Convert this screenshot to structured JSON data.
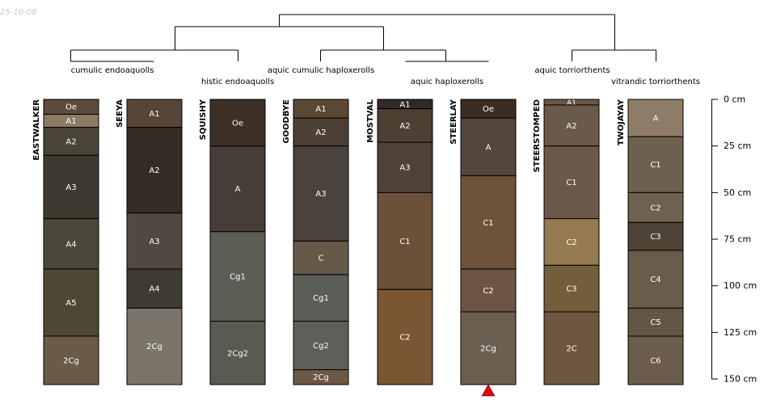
{
  "date_stamp": "25-10-08",
  "depth_axis": {
    "unit": "cm",
    "max": 150,
    "ticks": [
      {
        "value": 0,
        "label": "0 cm"
      },
      {
        "value": 25,
        "label": "25 cm"
      },
      {
        "value": 50,
        "label": "50 cm"
      },
      {
        "value": 75,
        "label": "75 cm"
      },
      {
        "value": 100,
        "label": "100 cm"
      },
      {
        "value": 125,
        "label": "125 cm"
      },
      {
        "value": 150,
        "label": "150 cm"
      }
    ]
  },
  "taxa": [
    "cumulic endoaquolls",
    "histic endoaquolls",
    "aquic cumulic haploxerolls",
    "aquic haploxerolls",
    "aquic torriorthents",
    "vitrandic torriorthents"
  ],
  "marker": {
    "profile_index": 5,
    "color": "#e8000b"
  },
  "profiles": [
    {
      "name": "EASTWALKER",
      "horizons": [
        {
          "name": "Oe",
          "top": 0,
          "bottom": 8,
          "color": "#5c4a3a"
        },
        {
          "name": "A1",
          "top": 8,
          "bottom": 15,
          "color": "#8c7b63"
        },
        {
          "name": "A2",
          "top": 15,
          "bottom": 30,
          "color": "#4a4538"
        },
        {
          "name": "A3",
          "top": 30,
          "bottom": 64,
          "color": "#3f3a30"
        },
        {
          "name": "A4",
          "top": 64,
          "bottom": 91,
          "color": "#4b4739"
        },
        {
          "name": "A5",
          "top": 91,
          "bottom": 127,
          "color": "#4f4733"
        },
        {
          "name": "2Cg",
          "top": 127,
          "bottom": 153,
          "color": "#6a5a48"
        }
      ]
    },
    {
      "name": "SEEYA",
      "horizons": [
        {
          "name": "A1",
          "top": 0,
          "bottom": 15,
          "color": "#574638"
        },
        {
          "name": "A2",
          "top": 15,
          "bottom": 61,
          "color": "#352a25"
        },
        {
          "name": "A3",
          "top": 61,
          "bottom": 91,
          "color": "#524840"
        },
        {
          "name": "A4",
          "top": 91,
          "bottom": 112,
          "color": "#3f3a34"
        },
        {
          "name": "2Cg",
          "top": 112,
          "bottom": 153,
          "color": "#7a7469"
        }
      ]
    },
    {
      "name": "SQUISHY",
      "horizons": [
        {
          "name": "Oe",
          "top": 0,
          "bottom": 25,
          "color": "#3c2f25"
        },
        {
          "name": "A",
          "top": 25,
          "bottom": 71,
          "color": "#463d38"
        },
        {
          "name": "Cg1",
          "top": 71,
          "bottom": 119,
          "color": "#5c5e55"
        },
        {
          "name": "2Cg2",
          "top": 119,
          "bottom": 153,
          "color": "#595a52"
        }
      ]
    },
    {
      "name": "GOODBYE",
      "horizons": [
        {
          "name": "A1",
          "top": 0,
          "bottom": 10,
          "color": "#5b4734"
        },
        {
          "name": "A2",
          "top": 10,
          "bottom": 25,
          "color": "#4c4035"
        },
        {
          "name": "A3",
          "top": 25,
          "bottom": 76,
          "color": "#4a423d"
        },
        {
          "name": "C",
          "top": 76,
          "bottom": 94,
          "color": "#65594a"
        },
        {
          "name": "Cg1",
          "top": 94,
          "bottom": 119,
          "color": "#5b5d57"
        },
        {
          "name": "Cg2",
          "top": 119,
          "bottom": 145,
          "color": "#5e5f58"
        },
        {
          "name": "2Cg",
          "top": 145,
          "bottom": 153,
          "color": "#6d5846"
        }
      ]
    },
    {
      "name": "MOSTVAL",
      "horizons": [
        {
          "name": "A1",
          "top": 0,
          "bottom": 5,
          "color": "#2f2a28"
        },
        {
          "name": "A2",
          "top": 5,
          "bottom": 23,
          "color": "#4d4032"
        },
        {
          "name": "A3",
          "top": 23,
          "bottom": 50,
          "color": "#4f4136"
        },
        {
          "name": "C1",
          "top": 50,
          "bottom": 102,
          "color": "#6b5138"
        },
        {
          "name": "C2",
          "top": 102,
          "bottom": 153,
          "color": "#7a5633"
        }
      ]
    },
    {
      "name": "STEERLAY",
      "horizons": [
        {
          "name": "Oe",
          "top": 0,
          "bottom": 10,
          "color": "#3b2d22"
        },
        {
          "name": "A",
          "top": 10,
          "bottom": 41,
          "color": "#54463a"
        },
        {
          "name": "C1",
          "top": 41,
          "bottom": 91,
          "color": "#6e5338"
        },
        {
          "name": "C2",
          "top": 91,
          "bottom": 114,
          "color": "#6c5544"
        },
        {
          "name": "2Cg",
          "top": 114,
          "bottom": 153,
          "color": "#6a5f51"
        }
      ]
    },
    {
      "name": "STEERSTOMPED",
      "horizons": [
        {
          "name": "A1",
          "top": 0,
          "bottom": 3,
          "color": "#6b5846"
        },
        {
          "name": "A2",
          "top": 3,
          "bottom": 25,
          "color": "#6a5a4a"
        },
        {
          "name": "C1",
          "top": 25,
          "bottom": 64,
          "color": "#6b5848"
        },
        {
          "name": "C2",
          "top": 64,
          "bottom": 89,
          "color": "#957a50"
        },
        {
          "name": "C3",
          "top": 89,
          "bottom": 114,
          "color": "#725e3a"
        },
        {
          "name": "2C",
          "top": 114,
          "bottom": 153,
          "color": "#6e5740"
        }
      ]
    },
    {
      "name": "TWOJAYAY",
      "horizons": [
        {
          "name": "A",
          "top": 0,
          "bottom": 20,
          "color": "#8e7c69"
        },
        {
          "name": "C1",
          "top": 20,
          "bottom": 50,
          "color": "#6d604f"
        },
        {
          "name": "C2",
          "top": 50,
          "bottom": 66,
          "color": "#6f604f"
        },
        {
          "name": "C3",
          "top": 66,
          "bottom": 81,
          "color": "#4c4335"
        },
        {
          "name": "C4",
          "top": 81,
          "bottom": 112,
          "color": "#6a5c4d"
        },
        {
          "name": "C5",
          "top": 112,
          "bottom": 127,
          "color": "#645644"
        },
        {
          "name": "C6",
          "top": 127,
          "bottom": 153,
          "color": "#6b5c4b"
        }
      ]
    }
  ]
}
